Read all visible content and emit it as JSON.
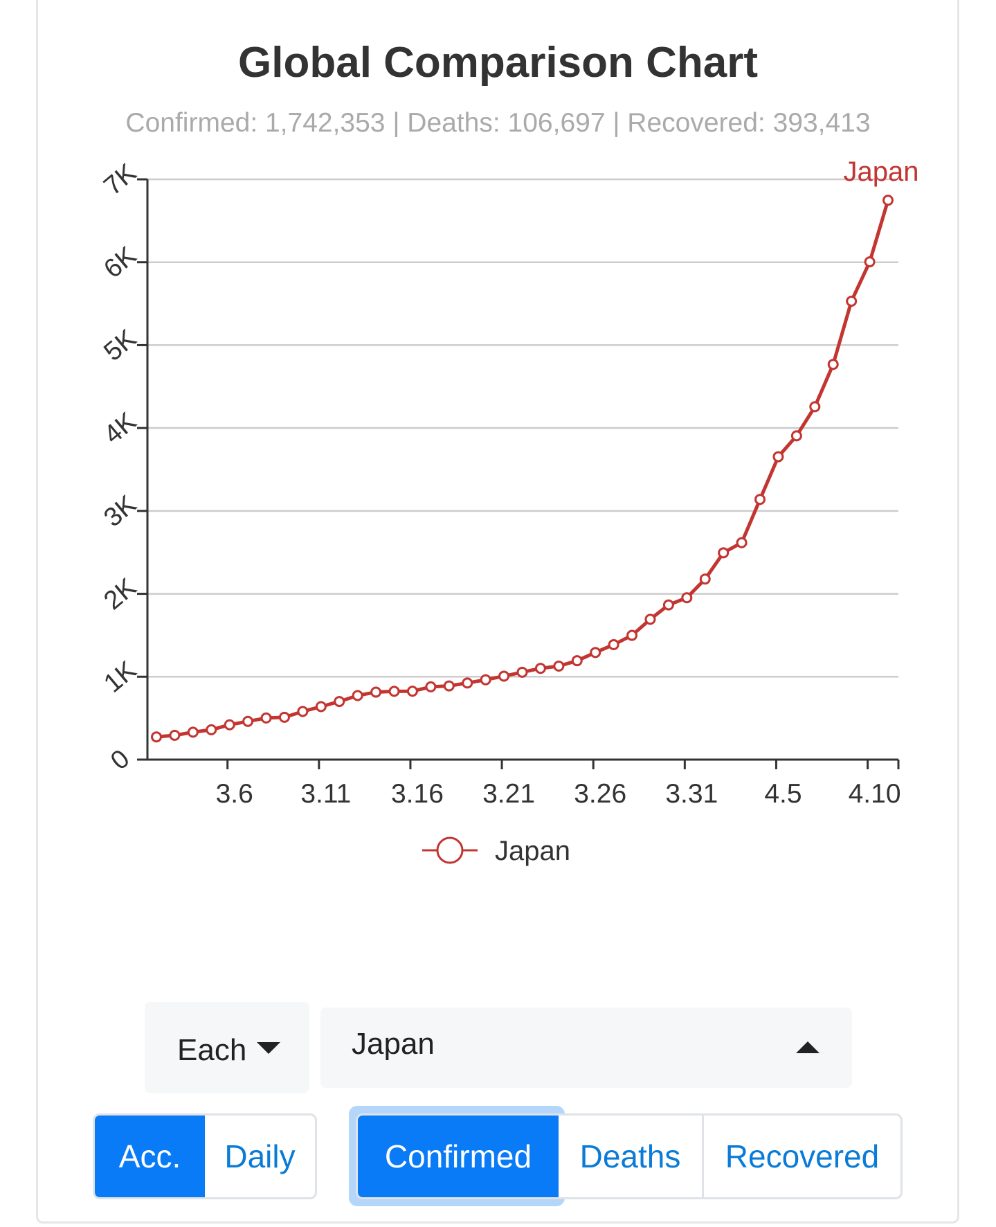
{
  "header": {
    "title": "Global Comparison Chart",
    "subtitle": "Confirmed: 1,742,353 | Deaths: 106,697 | Recovered: 393,413"
  },
  "colors": {
    "series": "#c23531",
    "accent": "#0a7bf7",
    "axis": "#333333",
    "grid": "#cccccc"
  },
  "chart_data": {
    "type": "line",
    "title": "",
    "xlabel": "",
    "ylabel": "",
    "ylim": [
      0,
      7000
    ],
    "ytick_labels": [
      "0",
      "1K",
      "2K",
      "3K",
      "4K",
      "5K",
      "6K",
      "7K"
    ],
    "ytick_values": [
      0,
      1000,
      2000,
      3000,
      4000,
      5000,
      6000,
      7000
    ],
    "xtick_labels": [
      "3.6",
      "3.11",
      "3.16",
      "3.21",
      "3.26",
      "3.31",
      "4.5",
      "4.10"
    ],
    "grid": true,
    "legend_position": "bottom-center",
    "end_label": "Japan",
    "x": [
      "3.2",
      "3.3",
      "3.4",
      "3.5",
      "3.6",
      "3.7",
      "3.8",
      "3.9",
      "3.10",
      "3.11",
      "3.12",
      "3.13",
      "3.14",
      "3.15",
      "3.16",
      "3.17",
      "3.18",
      "3.19",
      "3.20",
      "3.21",
      "3.22",
      "3.23",
      "3.24",
      "3.25",
      "3.26",
      "3.27",
      "3.28",
      "3.29",
      "3.30",
      "3.31",
      "4.1",
      "4.2",
      "4.3",
      "4.4",
      "4.5",
      "4.6",
      "4.7",
      "4.8",
      "4.9",
      "4.10",
      "4.11"
    ],
    "series": [
      {
        "name": "Japan",
        "values": [
          274,
          293,
          331,
          360,
          420,
          461,
          502,
          511,
          581,
          639,
          701,
          773,
          814,
          824,
          825,
          878,
          889,
          924,
          963,
          1007,
          1054,
          1101,
          1128,
          1193,
          1292,
          1387,
          1499,
          1693,
          1866,
          1953,
          2178,
          2495,
          2617,
          3139,
          3654,
          3906,
          4257,
          4768,
          5530,
          6005,
          6748
        ]
      }
    ]
  },
  "controls": {
    "aggregation_dropdown": "Each",
    "country_dropdown": "Japan",
    "mode_buttons": [
      "Acc.",
      "Daily"
    ],
    "metric_buttons": [
      "Confirmed",
      "Deaths",
      "Recovered"
    ]
  }
}
